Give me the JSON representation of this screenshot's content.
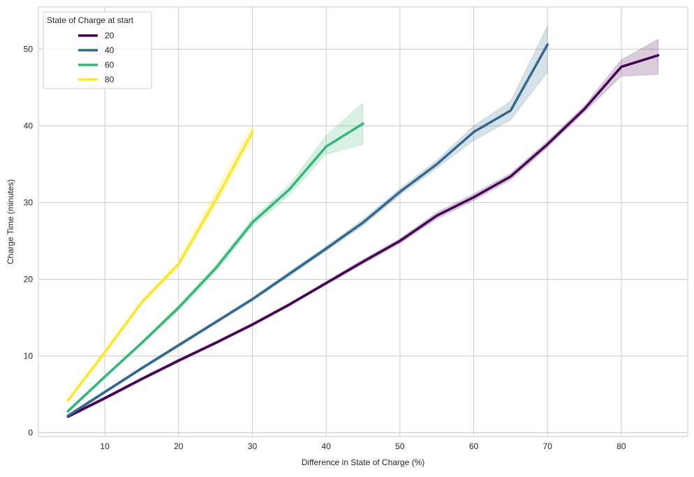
{
  "chart_data": {
    "type": "line",
    "xlabel": "Difference in State of Charge (%)",
    "ylabel": "Charge Time (minutes)",
    "xlim": [
      1,
      89
    ],
    "ylim": [
      -0.5,
      55.5
    ],
    "xticks": [
      10,
      20,
      30,
      40,
      50,
      60,
      70,
      80
    ],
    "yticks": [
      0,
      10,
      20,
      30,
      40,
      50
    ],
    "grid": true,
    "legend": {
      "title": "State of Charge at start",
      "placement": "top-left"
    },
    "series": [
      {
        "name": "20",
        "color": "#440154",
        "x": [
          5,
          10,
          15,
          20,
          25,
          30,
          35,
          40,
          45,
          50,
          55,
          60,
          65,
          70,
          75,
          80,
          85
        ],
        "y": [
          2.1,
          4.5,
          7.0,
          9.4,
          11.7,
          14.1,
          16.7,
          19.5,
          22.3,
          25.0,
          28.3,
          30.7,
          33.4,
          37.6,
          42.2,
          47.7,
          49.2
        ],
        "lo": [
          1.9,
          4.3,
          6.8,
          9.2,
          11.5,
          13.9,
          16.5,
          19.3,
          22.0,
          24.7,
          27.9,
          30.3,
          33.0,
          37.2,
          41.8,
          46.5,
          46.7
        ],
        "hi": [
          2.3,
          4.7,
          7.2,
          9.6,
          11.9,
          14.3,
          16.9,
          19.7,
          22.6,
          25.3,
          28.7,
          31.1,
          33.8,
          38.0,
          42.6,
          48.6,
          51.3
        ]
      },
      {
        "name": "40",
        "color": "#31688e",
        "x": [
          5,
          10,
          15,
          20,
          25,
          30,
          35,
          40,
          45,
          50,
          55,
          60,
          65,
          70
        ],
        "y": [
          2.2,
          5.3,
          8.4,
          11.4,
          14.4,
          17.4,
          20.7,
          24.0,
          27.4,
          31.4,
          35.0,
          39.2,
          42.0,
          50.6
        ],
        "lo": [
          2.0,
          5.1,
          8.2,
          11.2,
          14.2,
          17.2,
          20.4,
          23.7,
          27.0,
          31.0,
          34.5,
          38.1,
          40.8,
          47.0
        ],
        "hi": [
          2.4,
          5.5,
          8.6,
          11.6,
          14.6,
          17.6,
          21.0,
          24.3,
          27.8,
          31.8,
          35.5,
          40.0,
          43.2,
          53.0
        ]
      },
      {
        "name": "60",
        "color": "#35b779",
        "x": [
          5,
          10,
          15,
          20,
          25,
          30,
          35,
          40,
          45
        ],
        "y": [
          2.8,
          7.3,
          11.7,
          16.3,
          21.4,
          27.4,
          31.7,
          37.3,
          40.3
        ],
        "lo": [
          2.6,
          7.1,
          11.5,
          16.0,
          21.0,
          26.9,
          31.0,
          36.3,
          37.6
        ],
        "hi": [
          3.0,
          7.5,
          11.9,
          16.6,
          21.8,
          27.9,
          32.3,
          38.7,
          43.0
        ]
      },
      {
        "name": "80",
        "color": "#fde725",
        "x": [
          5,
          10,
          15,
          20,
          25,
          30
        ],
        "y": [
          4.2,
          10.5,
          17.0,
          22.0,
          30.3,
          39.2
        ],
        "lo": [
          4.0,
          10.2,
          16.7,
          21.6,
          29.5,
          38.3
        ],
        "hi": [
          4.4,
          10.8,
          17.3,
          22.4,
          31.5,
          40.2
        ]
      }
    ]
  }
}
